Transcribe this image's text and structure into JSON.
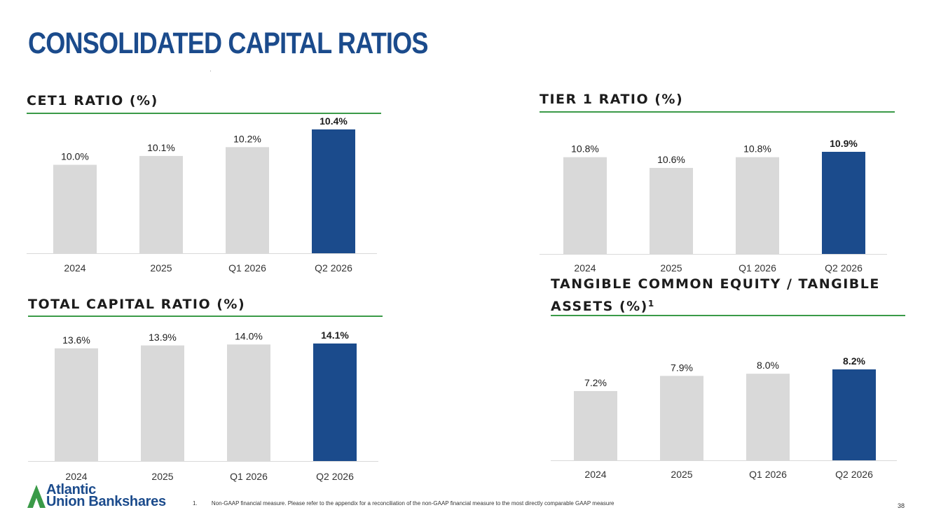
{
  "page_title": "CONSOLIDATED CAPITAL RATIOS",
  "colors": {
    "title": "#1b4b8c",
    "bar_default": "#d9d9d9",
    "bar_highlight": "#1b4b8c",
    "rule": "#3a9a48"
  },
  "chart_data": [
    {
      "type": "bar",
      "title": "CET1 RATIO (%)",
      "categories": [
        "2024",
        "2025",
        "Q1 2026",
        "Q2 2026"
      ],
      "values": [
        10.0,
        10.1,
        10.2,
        10.4
      ],
      "labels": [
        "10.0%",
        "10.1%",
        "10.2%",
        "10.4%"
      ],
      "highlight_index": 3
    },
    {
      "type": "bar",
      "title": "TIER 1 RATIO (%)",
      "categories": [
        "2024",
        "2025",
        "Q1 2026",
        "Q2 2026"
      ],
      "values": [
        10.8,
        10.6,
        10.8,
        10.9
      ],
      "labels": [
        "10.8%",
        "10.6%",
        "10.8%",
        "10.9%"
      ],
      "highlight_index": 3
    },
    {
      "type": "bar",
      "title": "TOTAL CAPITAL RATIO (%)",
      "categories": [
        "2024",
        "2025",
        "Q1 2026",
        "Q2 2026"
      ],
      "values": [
        13.6,
        13.9,
        14.0,
        14.1
      ],
      "labels": [
        "13.6%",
        "13.9%",
        "14.0%",
        "14.1%"
      ],
      "highlight_index": 3
    },
    {
      "type": "bar",
      "title": "TANGIBLE COMMON EQUITY / TANGIBLE ASSETS (%)",
      "title_lines": [
        "TANGIBLE COMMON EQUITY / TANGIBLE",
        "ASSETS (%)"
      ],
      "title_footnote_mark": "1",
      "categories": [
        "2024",
        "2025",
        "Q1 2026",
        "Q2 2026"
      ],
      "values": [
        7.2,
        7.9,
        8.0,
        8.2
      ],
      "labels": [
        "7.2%",
        "7.9%",
        "8.0%",
        "8.2%"
      ],
      "highlight_index": 3
    }
  ],
  "logo": {
    "line1": "Atlantic",
    "line2": "Union Bankshares"
  },
  "footnote": {
    "number": "1.",
    "text": "Non-GAAP financial measure. Please refer to the appendix for a reconciliation of the non-GAAP financial measure to the most directly comparable GAAP measure"
  },
  "page_number": "38"
}
